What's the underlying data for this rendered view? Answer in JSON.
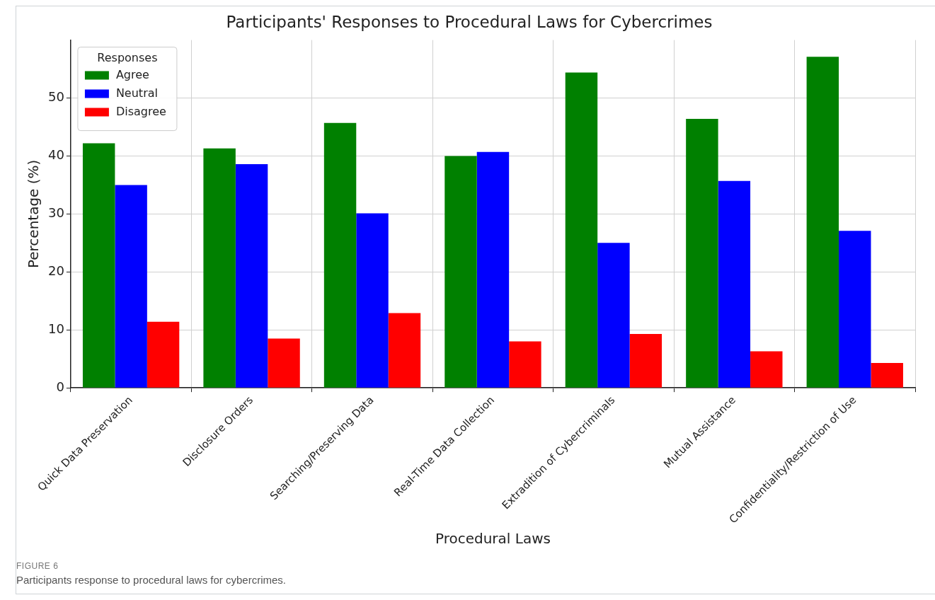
{
  "chart_data": {
    "type": "bar",
    "title": "Participants' Responses to Procedural Laws for Cybercrimes",
    "xlabel": "Procedural Laws",
    "ylabel": "Percentage (%)",
    "legend_title": "Responses",
    "categories": [
      "Quick Data Preservation",
      "Disclosure Orders",
      "Searching/Preserving Data",
      "Real-Time Data Collection",
      "Extradition of Cybercriminals",
      "Mutual Assistance",
      "Confidentiality/Restriction of Use"
    ],
    "series": [
      {
        "name": "Agree",
        "color": "#008000",
        "values": [
          42.2,
          41.3,
          45.7,
          40.0,
          54.4,
          46.4,
          57.1
        ]
      },
      {
        "name": "Neutral",
        "color": "#0000ff",
        "values": [
          35.0,
          38.6,
          30.1,
          40.7,
          25.0,
          35.7,
          27.1
        ]
      },
      {
        "name": "Disagree",
        "color": "#ff0000",
        "values": [
          11.4,
          8.5,
          12.9,
          8.0,
          9.3,
          6.3,
          4.3
        ]
      }
    ],
    "ylim": [
      0,
      60
    ],
    "yticks": [
      0,
      10,
      20,
      30,
      40,
      50
    ],
    "grid": true,
    "legend": "top left",
    "annotations": [
      "FIGURE 6",
      "Participants response to procedural laws for cybercrimes."
    ]
  }
}
